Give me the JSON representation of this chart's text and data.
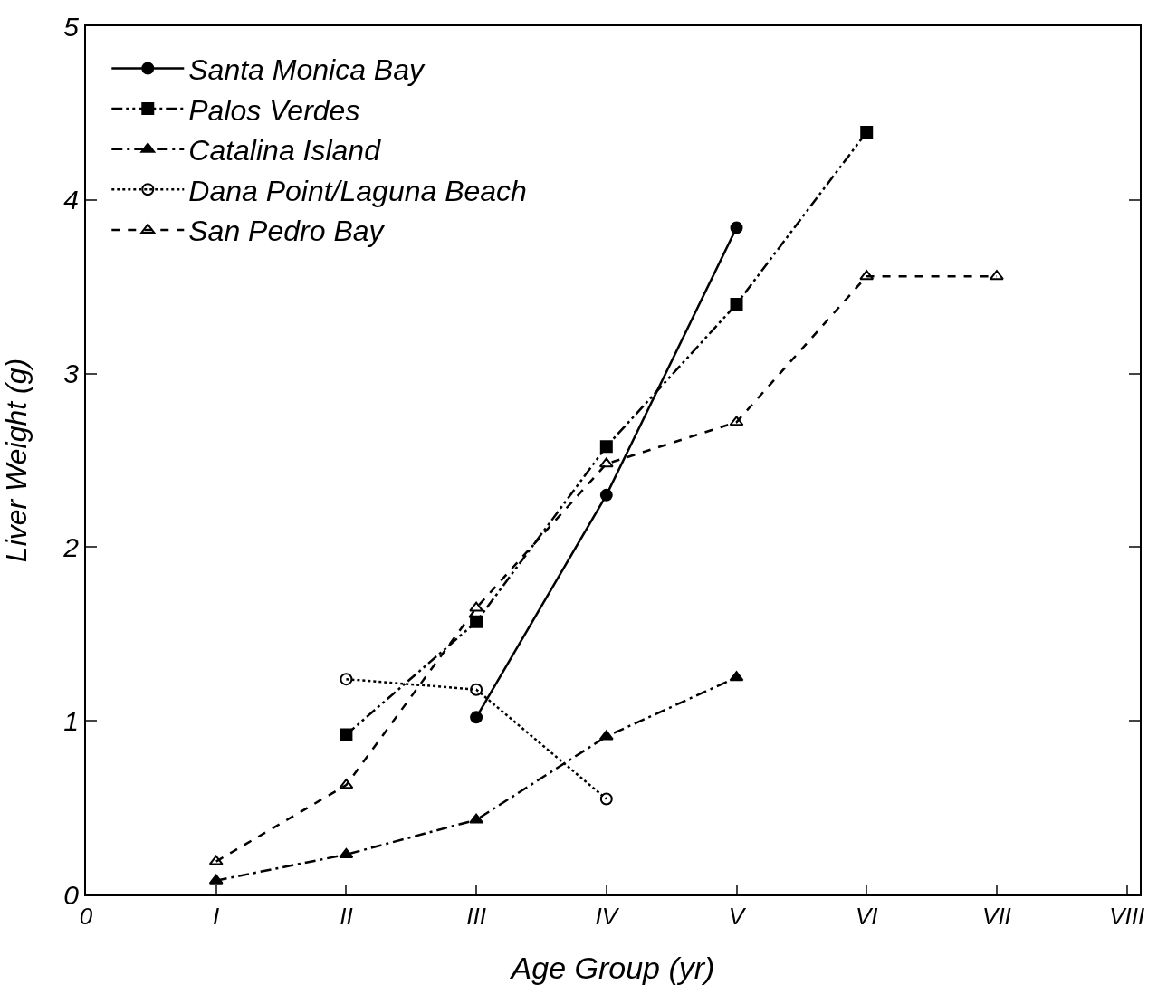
{
  "chart_data": {
    "type": "line",
    "xlabel": "Age Group (yr)",
    "ylabel": "Liver Weight (g)",
    "categories": [
      "0",
      "I",
      "II",
      "III",
      "IV",
      "V",
      "VI",
      "VII",
      "VIII"
    ],
    "ylim": [
      0,
      5
    ],
    "yticks": [
      0,
      1,
      2,
      3,
      4,
      5
    ],
    "grid": false,
    "legend": "top left",
    "series": [
      {
        "name": "Santa Monica Bay",
        "color": "#000000",
        "marker": "circle",
        "line_style": "solid",
        "values": [
          null,
          null,
          null,
          1.02,
          2.3,
          3.84,
          null,
          null,
          null
        ]
      },
      {
        "name": "Palos Verdes",
        "color": "#000000",
        "marker": "square",
        "line_style": "dashdotdot",
        "values": [
          null,
          null,
          0.92,
          1.57,
          2.58,
          3.4,
          4.39,
          null,
          null
        ]
      },
      {
        "name": "Catalina Island",
        "color": "#000000",
        "marker": "triangle",
        "line_style": "dashdot",
        "values": [
          null,
          0.08,
          0.23,
          0.43,
          0.91,
          1.25,
          null,
          null,
          null
        ]
      },
      {
        "name": "Dana Point/Laguna Beach",
        "color": "#000000",
        "marker": "circle-open",
        "line_style": "dotted",
        "values": [
          null,
          null,
          1.24,
          1.18,
          0.55,
          null,
          null,
          null,
          null
        ]
      },
      {
        "name": "San Pedro Bay",
        "color": "#000000",
        "marker": "triangle-open",
        "line_style": "dashed",
        "values": [
          null,
          0.19,
          0.63,
          1.65,
          2.48,
          2.72,
          3.56,
          3.56,
          null
        ]
      }
    ]
  }
}
